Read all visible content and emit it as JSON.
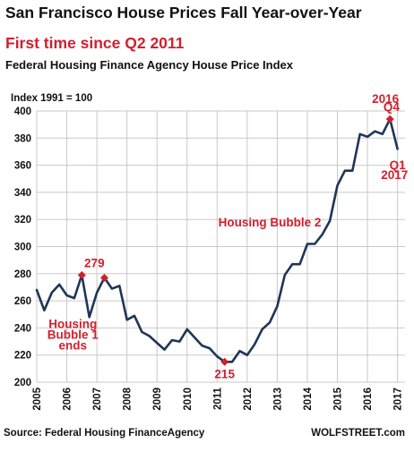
{
  "header": {
    "title": "San Francisco House Prices Fall Year-over-Year",
    "subtitle": "First time since Q2 2011",
    "description": "Federal Housing Finance Agency House Price Index"
  },
  "footer": {
    "source": "Source: Federal Housing FinanceAgency",
    "brand": "WOLFSTREET.com"
  },
  "colors": {
    "line": "#1f3557",
    "accent": "#d0202e",
    "grid": "#c9c9c9"
  },
  "chart_data": {
    "type": "line",
    "ylabel": "Index 1991 = 100",
    "ylim": [
      200,
      400
    ],
    "yticks": [
      200,
      220,
      240,
      260,
      280,
      300,
      320,
      340,
      360,
      380,
      400
    ],
    "xlim": [
      2005.0,
      2017.25
    ],
    "xticks": [
      "2005",
      "2006",
      "2007",
      "2008",
      "2009",
      "2010",
      "2011",
      "2012",
      "2013",
      "2014",
      "2015",
      "2016",
      "2017"
    ],
    "grid": true,
    "series": [
      {
        "x": [
          2005.0,
          2005.25,
          2005.5,
          2005.75,
          2006.0,
          2006.25,
          2006.5,
          2006.75,
          2007.0,
          2007.25,
          2007.5,
          2007.75,
          2008.0,
          2008.25,
          2008.5,
          2008.75,
          2009.0,
          2009.25,
          2009.5,
          2009.75,
          2010.0,
          2010.25,
          2010.5,
          2010.75,
          2011.0,
          2011.25,
          2011.5,
          2011.75,
          2012.0,
          2012.25,
          2012.5,
          2012.75,
          2013.0,
          2013.25,
          2013.5,
          2013.75,
          2014.0,
          2014.25,
          2014.5,
          2014.75,
          2015.0,
          2015.25,
          2015.5,
          2015.75,
          2016.0,
          2016.25,
          2016.5,
          2016.75,
          2017.0
        ],
        "values": [
          268,
          253,
          266,
          272,
          264,
          262,
          279,
          248,
          266,
          277,
          269,
          271,
          246,
          249,
          237,
          234,
          229,
          224,
          231,
          230,
          239,
          233,
          227,
          225,
          219,
          215,
          215,
          223,
          220,
          228,
          239,
          244,
          256,
          279,
          287,
          287,
          302,
          302,
          309,
          319,
          345,
          356,
          356,
          383,
          381,
          385,
          383,
          394,
          372
        ]
      }
    ],
    "annotations": [
      {
        "text": "279",
        "x": 2006.5,
        "y": 279,
        "marker": true
      },
      {
        "text": "",
        "x": 2007.25,
        "y": 277,
        "marker": true
      },
      {
        "text": "215",
        "x": 2011.25,
        "y": 215,
        "marker": true
      },
      {
        "text": "",
        "x": 2016.75,
        "y": 394,
        "marker": true
      },
      {
        "text": "2016",
        "x": 2016.6,
        "y": 406
      },
      {
        "text": "Q4",
        "x": 2016.8,
        "y": 400
      },
      {
        "text": "Q1",
        "x": 2017.0,
        "y": 357
      },
      {
        "text": "2017",
        "x": 2016.9,
        "y": 350
      },
      {
        "text": "Housing Bubble 2",
        "x": 2012.75,
        "y": 315
      },
      {
        "text": "Housing",
        "x": 2006.2,
        "y": 240
      },
      {
        "text": "Bubble 1",
        "x": 2006.2,
        "y": 232
      },
      {
        "text": "ends",
        "x": 2006.2,
        "y": 224
      }
    ]
  }
}
